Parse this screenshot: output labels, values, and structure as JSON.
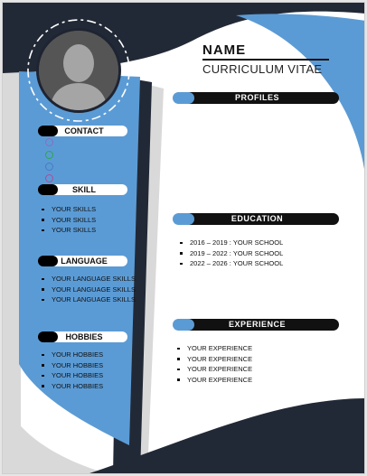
{
  "header": {
    "name": "NAME",
    "subtitle": "CURRICULUM VITAE"
  },
  "sidebar": {
    "contact_title": "CONTACT",
    "contact_icons": [
      {
        "icon": "phone-icon",
        "color": "#8e6ac0"
      },
      {
        "icon": "mail-icon",
        "color": "#2aa84a"
      },
      {
        "icon": "location-icon",
        "color": "#4a79c4"
      },
      {
        "icon": "web-icon",
        "color": "#b04a9a"
      }
    ],
    "skill_title": "SKILL",
    "skills": [
      "YOUR SKILLS",
      "YOUR SKILLS",
      "YOUR SKILLS"
    ],
    "language_title": "LANGUAGE",
    "languages": [
      "YOUR LANGUAGE SKILLS",
      "YOUR LANGUAGE SKILLS",
      "YOUR LANGUAGE SKILLS"
    ],
    "hobbies_title": "HOBBIES",
    "hobbies": [
      "YOUR HOBBIES",
      "YOUR HOBBIES",
      "YOUR HOBBIES",
      "YOUR HOBBIES"
    ]
  },
  "main": {
    "profiles_title": "PROFILES",
    "education_title": "EDUCATION",
    "education": [
      "2016 – 2019 : YOUR SCHOOL",
      "2019 – 2022 : YOUR SCHOOL",
      "2022 – 2026 : YOUR SCHOOL"
    ],
    "experience_title": "EXPERIENCE",
    "experience": [
      "YOUR EXPERIENCE",
      "YOUR EXPERIENCE",
      "YOUR EXPERIENCE",
      "YOUR EXPERIENCE"
    ]
  },
  "colors": {
    "navy": "#222936",
    "blue": "#5b9bd5",
    "grey": "#d9d9d9"
  }
}
